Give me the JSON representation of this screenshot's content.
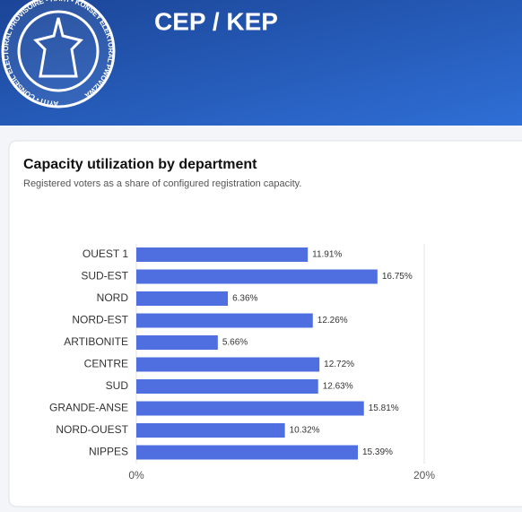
{
  "header": {
    "title": "CEP / KEP",
    "logo_text": "AYITI • CONSEIL ÉLECTORAL PROVISOIRE • HAITI • KONSEY ELEKTORAL PWOVIZWA"
  },
  "chart_data": {
    "type": "bar",
    "orientation": "horizontal",
    "title": "Capacity utilization by department",
    "subtitle": "Registered voters as a share of configured registration capacity.",
    "categories": [
      "OUEST 1",
      "SUD-EST",
      "NORD",
      "NORD-EST",
      "ARTIBONITE",
      "CENTRE",
      "SUD",
      "GRANDE-ANSE",
      "NORD-OUEST",
      "NIPPES"
    ],
    "values": [
      11.91,
      16.75,
      6.36,
      12.26,
      5.66,
      12.72,
      12.63,
      15.81,
      10.32,
      15.39
    ],
    "value_labels": [
      "11.91%",
      "16.75%",
      "6.36%",
      "12.26%",
      "5.66%",
      "12.72%",
      "12.63%",
      "15.81%",
      "10.32%",
      "15.39%"
    ],
    "color": "#4f6fe0",
    "xlim": [
      0,
      20
    ],
    "xticks": [
      {
        "value": 0,
        "label": "0%"
      },
      {
        "value": 20,
        "label": "20%"
      }
    ],
    "grid": true
  }
}
